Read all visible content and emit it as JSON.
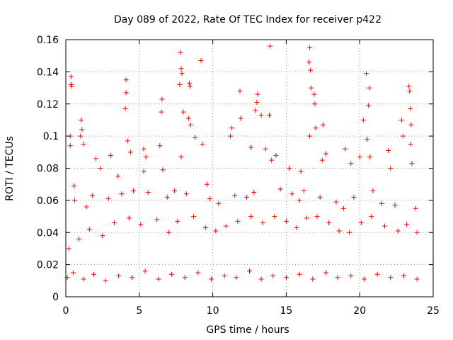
{
  "chart_data": {
    "type": "scatter",
    "title": "Day 089 of 2022, Rate Of TEC Index for receiver p422",
    "xlabel": "GPS time / hours",
    "ylabel": "ROTI / TECUs",
    "xlim": [
      0,
      25
    ],
    "ylim": [
      0,
      0.16
    ],
    "xticks": [
      0,
      5,
      10,
      15,
      20,
      25
    ],
    "xtick_labels": [
      "0",
      "5",
      "10",
      "15",
      "20",
      "25"
    ],
    "yticks": [
      0,
      0.02,
      0.04,
      0.06,
      0.08,
      0.1,
      0.12,
      0.14,
      0.16
    ],
    "ytick_labels": [
      "0",
      "0.02",
      "0.04",
      "0.06",
      "0.08",
      "0.1",
      "0.12",
      "0.14",
      "0.16"
    ],
    "grid": true,
    "marker": "+",
    "color": "#ff0000",
    "series": [
      {
        "name": "ROTI",
        "points": [
          [
            0.35,
            0.137
          ],
          [
            0.35,
            0.132
          ],
          [
            0.4,
            0.131
          ],
          [
            0.3,
            0.1
          ],
          [
            0.3,
            0.094
          ],
          [
            0.55,
            0.069
          ],
          [
            1.05,
            0.11
          ],
          [
            1.1,
            0.104
          ],
          [
            1.0,
            0.1
          ],
          [
            1.2,
            0.095
          ],
          [
            2.05,
            0.086
          ],
          [
            2.35,
            0.08
          ],
          [
            3.05,
            0.088
          ],
          [
            3.55,
            0.075
          ],
          [
            4.1,
            0.135
          ],
          [
            4.1,
            0.127
          ],
          [
            4.05,
            0.117
          ],
          [
            4.2,
            0.097
          ],
          [
            4.4,
            0.09
          ],
          [
            5.3,
            0.092
          ],
          [
            5.45,
            0.087
          ],
          [
            5.3,
            0.078
          ],
          [
            6.55,
            0.123
          ],
          [
            6.5,
            0.115
          ],
          [
            6.4,
            0.094
          ],
          [
            6.6,
            0.079
          ],
          [
            7.8,
            0.152
          ],
          [
            7.85,
            0.142
          ],
          [
            7.9,
            0.139
          ],
          [
            7.75,
            0.132
          ],
          [
            8.0,
            0.115
          ],
          [
            7.85,
            0.087
          ],
          [
            8.4,
            0.133
          ],
          [
            8.45,
            0.131
          ],
          [
            8.35,
            0.111
          ],
          [
            8.5,
            0.107
          ],
          [
            8.8,
            0.099
          ],
          [
            9.2,
            0.147
          ],
          [
            9.3,
            0.095
          ],
          [
            9.6,
            0.07
          ],
          [
            11.2,
            0.1
          ],
          [
            11.3,
            0.105
          ],
          [
            11.85,
            0.128
          ],
          [
            11.9,
            0.111
          ],
          [
            12.6,
            0.093
          ],
          [
            13.0,
            0.121
          ],
          [
            13.05,
            0.126
          ],
          [
            12.9,
            0.116
          ],
          [
            13.3,
            0.113
          ],
          [
            13.6,
            0.092
          ],
          [
            13.9,
            0.156
          ],
          [
            13.85,
            0.113
          ],
          [
            14.0,
            0.085
          ],
          [
            14.3,
            0.088
          ],
          [
            15.2,
            0.08
          ],
          [
            16.0,
            0.078
          ],
          [
            16.6,
            0.155
          ],
          [
            16.55,
            0.146
          ],
          [
            16.65,
            0.141
          ],
          [
            16.7,
            0.13
          ],
          [
            16.6,
            0.1
          ],
          [
            16.9,
            0.126
          ],
          [
            16.95,
            0.12
          ],
          [
            17.0,
            0.105
          ],
          [
            17.5,
            0.107
          ],
          [
            17.7,
            0.089
          ],
          [
            17.45,
            0.085
          ],
          [
            19.0,
            0.092
          ],
          [
            19.4,
            0.083
          ],
          [
            20.0,
            0.087
          ],
          [
            20.25,
            0.11
          ],
          [
            20.45,
            0.139
          ],
          [
            20.65,
            0.13
          ],
          [
            20.6,
            0.119
          ],
          [
            20.5,
            0.098
          ],
          [
            20.7,
            0.087
          ],
          [
            21.95,
            0.091
          ],
          [
            22.1,
            0.08
          ],
          [
            22.85,
            0.11
          ],
          [
            22.95,
            0.1
          ],
          [
            23.35,
            0.131
          ],
          [
            23.4,
            0.128
          ],
          [
            23.45,
            0.117
          ],
          [
            23.5,
            0.107
          ],
          [
            23.45,
            0.095
          ],
          [
            23.55,
            0.083
          ],
          [
            0.6,
            0.06
          ],
          [
            1.4,
            0.056
          ],
          [
            1.8,
            0.063
          ],
          [
            2.9,
            0.061
          ],
          [
            3.8,
            0.064
          ],
          [
            4.6,
            0.066
          ],
          [
            5.6,
            0.065
          ],
          [
            6.9,
            0.062
          ],
          [
            7.4,
            0.066
          ],
          [
            8.2,
            0.064
          ],
          [
            9.8,
            0.061
          ],
          [
            10.4,
            0.058
          ],
          [
            11.5,
            0.063
          ],
          [
            12.3,
            0.062
          ],
          [
            12.8,
            0.065
          ],
          [
            14.6,
            0.067
          ],
          [
            15.4,
            0.064
          ],
          [
            15.9,
            0.06
          ],
          [
            16.2,
            0.066
          ],
          [
            17.3,
            0.062
          ],
          [
            18.4,
            0.059
          ],
          [
            18.9,
            0.055
          ],
          [
            19.6,
            0.062
          ],
          [
            20.9,
            0.066
          ],
          [
            21.5,
            0.058
          ],
          [
            22.4,
            0.057
          ],
          [
            23.8,
            0.055
          ],
          [
            0.2,
            0.03
          ],
          [
            0.9,
            0.036
          ],
          [
            1.6,
            0.042
          ],
          [
            2.5,
            0.038
          ],
          [
            3.3,
            0.046
          ],
          [
            4.3,
            0.049
          ],
          [
            5.1,
            0.045
          ],
          [
            6.2,
            0.048
          ],
          [
            7.0,
            0.04
          ],
          [
            7.6,
            0.047
          ],
          [
            8.7,
            0.05
          ],
          [
            9.5,
            0.043
          ],
          [
            10.2,
            0.041
          ],
          [
            10.9,
            0.044
          ],
          [
            11.7,
            0.047
          ],
          [
            12.6,
            0.05
          ],
          [
            13.4,
            0.046
          ],
          [
            14.2,
            0.05
          ],
          [
            15.0,
            0.047
          ],
          [
            15.7,
            0.043
          ],
          [
            16.4,
            0.049
          ],
          [
            17.1,
            0.05
          ],
          [
            17.9,
            0.046
          ],
          [
            18.6,
            0.041
          ],
          [
            19.3,
            0.04
          ],
          [
            20.1,
            0.046
          ],
          [
            20.8,
            0.05
          ],
          [
            21.7,
            0.044
          ],
          [
            22.6,
            0.041
          ],
          [
            23.2,
            0.045
          ],
          [
            23.9,
            0.04
          ],
          [
            0.1,
            0.012
          ],
          [
            0.5,
            0.015
          ],
          [
            1.2,
            0.011
          ],
          [
            1.9,
            0.014
          ],
          [
            2.7,
            0.01
          ],
          [
            3.6,
            0.013
          ],
          [
            4.5,
            0.012
          ],
          [
            5.4,
            0.016
          ],
          [
            6.3,
            0.011
          ],
          [
            7.2,
            0.014
          ],
          [
            8.1,
            0.012
          ],
          [
            9.0,
            0.015
          ],
          [
            9.9,
            0.011
          ],
          [
            10.8,
            0.013
          ],
          [
            11.6,
            0.012
          ],
          [
            12.5,
            0.016
          ],
          [
            13.3,
            0.011
          ],
          [
            14.1,
            0.013
          ],
          [
            15.0,
            0.012
          ],
          [
            15.9,
            0.014
          ],
          [
            16.8,
            0.011
          ],
          [
            17.7,
            0.015
          ],
          [
            18.5,
            0.012
          ],
          [
            19.4,
            0.013
          ],
          [
            20.3,
            0.011
          ],
          [
            21.2,
            0.014
          ],
          [
            22.1,
            0.012
          ],
          [
            23.0,
            0.013
          ],
          [
            23.9,
            0.011
          ]
        ]
      }
    ]
  }
}
